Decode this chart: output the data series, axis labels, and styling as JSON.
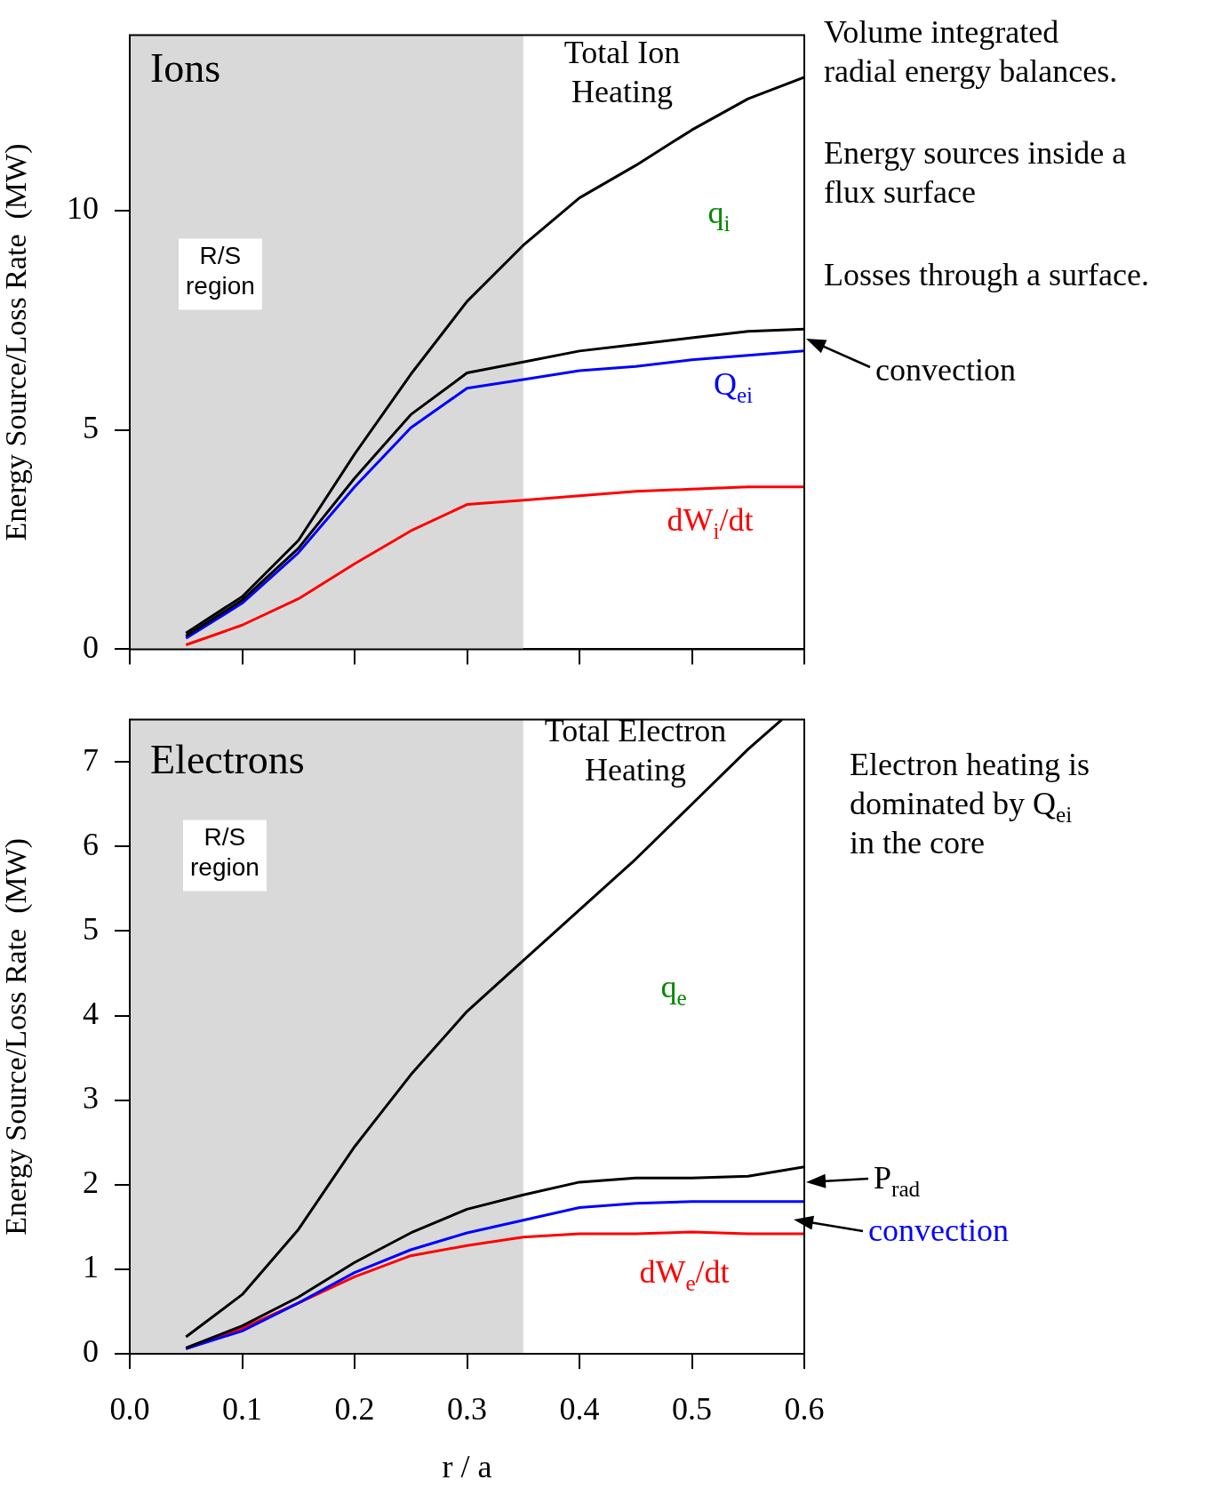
{
  "chart_data": [
    {
      "type": "line",
      "title": "Ions",
      "ylabel": "Energy Source/Loss Rate  (MW)",
      "x": [
        0.05,
        0.1,
        0.15,
        0.2,
        0.25,
        0.3,
        0.35,
        0.4,
        0.45,
        0.5,
        0.55,
        0.6
      ],
      "series": [
        {
          "color": "#000000",
          "values": [
            0.37,
            1.2,
            2.48,
            4.45,
            6.27,
            7.93,
            9.21,
            10.29,
            11.03,
            11.84,
            12.55,
            13.04
          ]
        },
        {
          "color": "#000000",
          "values": [
            0.3,
            1.12,
            2.3,
            3.9,
            5.35,
            6.3,
            6.55,
            6.8,
            6.95,
            7.1,
            7.25,
            7.3
          ]
        },
        {
          "color": "#0000ff",
          "values": [
            0.25,
            1.05,
            2.2,
            3.7,
            5.05,
            5.95,
            6.15,
            6.35,
            6.45,
            6.6,
            6.7,
            6.8
          ]
        },
        {
          "color": "#ff0000",
          "values": [
            0.1,
            0.55,
            1.15,
            1.95,
            2.7,
            3.3,
            3.4,
            3.5,
            3.6,
            3.65,
            3.7,
            3.7
          ]
        }
      ],
      "xlim": [
        0,
        0.6
      ],
      "xticks": [
        0,
        0.1,
        0.2,
        0.3,
        0.4,
        0.5,
        0.6
      ],
      "ylim": [
        0,
        14
      ],
      "yticks": [
        0,
        5,
        10
      ],
      "tick_labels": "y",
      "marker": "none",
      "bands": [
        {
          "axis": "x",
          "from": 0,
          "to": 0.35,
          "label": "R/S\nregion",
          "color": "#d9d9d9"
        }
      ],
      "annotations": [
        "Total Ion\nHeating",
        "q$_{i}$",
        "Q$_{ei}$",
        "dW$_{i}$/dt",
        "convection",
        "Volume integrated\nradial energy balances.",
        "Energy sources inside a\nflux surface",
        "Losses through a surface."
      ]
    },
    {
      "type": "line",
      "title": "Electrons",
      "xlabel": "r / a",
      "ylabel": "Energy Source/Loss Rate  (MW)",
      "x": [
        0.05,
        0.1,
        0.15,
        0.2,
        0.25,
        0.3,
        0.35,
        0.4,
        0.45,
        0.5,
        0.55,
        0.6
      ],
      "series": [
        {
          "color": "#000000",
          "x": [
            0.05,
            0.1,
            0.15,
            0.2,
            0.25,
            0.3,
            0.35,
            0.4,
            0.45,
            0.5,
            0.55,
            0.58
          ],
          "values": [
            0.2,
            0.7,
            1.47,
            2.45,
            3.3,
            4.05,
            4.65,
            5.25,
            5.85,
            6.5,
            7.15,
            7.5
          ]
        },
        {
          "color": "#000000",
          "values": [
            0.07,
            0.33,
            0.67,
            1.08,
            1.43,
            1.71,
            1.88,
            2.03,
            2.08,
            2.08,
            2.1,
            2.21
          ]
        },
        {
          "color": "#0000ff",
          "values": [
            0.06,
            0.27,
            0.6,
            0.96,
            1.23,
            1.43,
            1.58,
            1.73,
            1.78,
            1.8,
            1.8,
            1.8
          ]
        },
        {
          "color": "#ff0000",
          "values": [
            0.06,
            0.3,
            0.6,
            0.91,
            1.16,
            1.28,
            1.38,
            1.42,
            1.42,
            1.44,
            1.42,
            1.42
          ]
        }
      ],
      "xlim": [
        0,
        0.6
      ],
      "xticks": [
        {
          "value": 0,
          "label": "0.0"
        },
        {
          "value": 0.1,
          "label": "0.1"
        },
        {
          "value": 0.2,
          "label": "0.2"
        },
        {
          "value": 0.3,
          "label": "0.3"
        },
        {
          "value": 0.4,
          "label": "0.4"
        },
        {
          "value": 0.5,
          "label": "0.5"
        },
        {
          "value": 0.6,
          "label": "0.6"
        }
      ],
      "ylim": [
        0,
        7.5
      ],
      "yticks": [
        0,
        1,
        2,
        3,
        4,
        5,
        6,
        7
      ],
      "marker": "none",
      "bands": [
        {
          "axis": "x",
          "from": 0,
          "to": 0.35,
          "label": "R/S\nregion",
          "color": "#d9d9d9"
        }
      ],
      "annotations": [
        "Total Electron\nHeating",
        "q$_{e}$",
        "dW$_{e}$/dt",
        "P$_{rad}$",
        "convection",
        "Electron heating is\ndominated by Q$_{ei}$\nin the core"
      ]
    }
  ]
}
